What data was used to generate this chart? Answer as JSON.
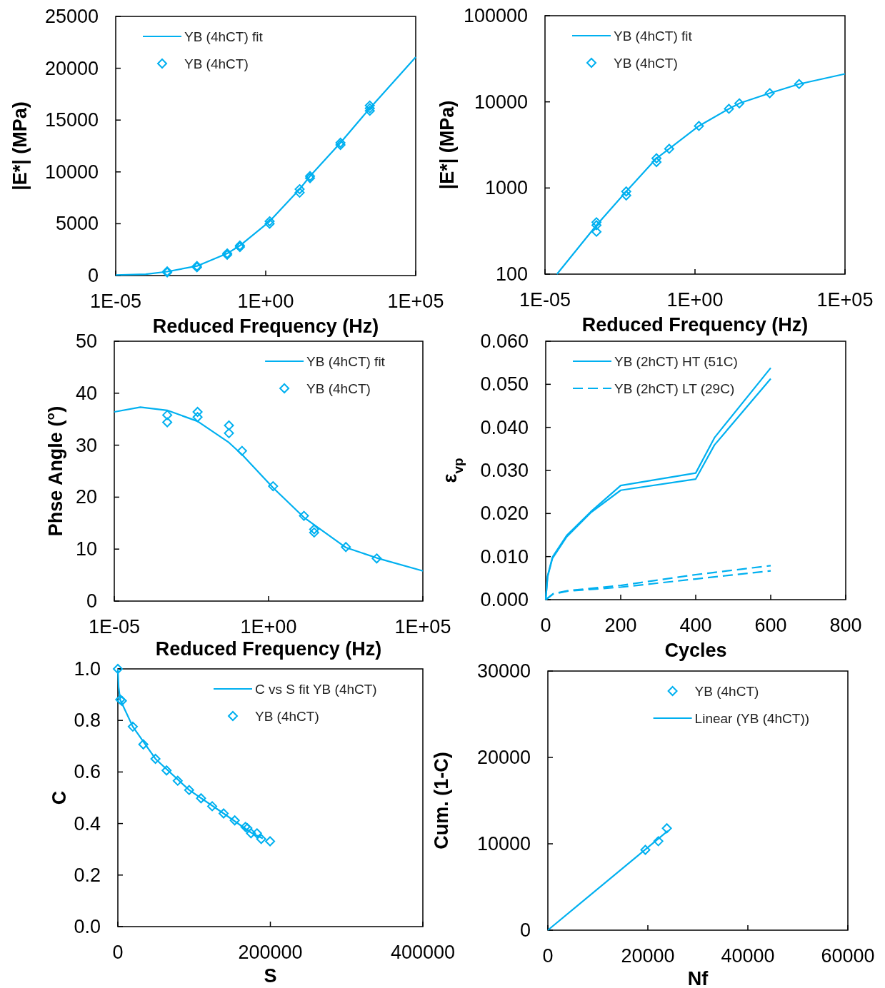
{
  "chart_data": [
    {
      "type": "scatter",
      "xlabel": "Reduced Frequency (Hz)",
      "ylabel": "|E*| (MPa)",
      "log": "x",
      "xlim": [
        1e-05,
        100000
      ],
      "xticks": [
        {
          "value": 1e-05,
          "label": "1E-05"
        },
        {
          "value": 1,
          "label": "1E+00"
        },
        {
          "value": 100000,
          "label": "1E+05"
        }
      ],
      "ylim": [
        0,
        25000
      ],
      "yticks": [
        0,
        5000,
        10000,
        15000,
        20000,
        25000
      ],
      "legend": "top left",
      "grid": false,
      "series": [
        {
          "name": "YB (4hCT) fit",
          "type": "line",
          "color": "#00b0f0",
          "x": [
            1e-05,
            0.0001,
            0.00052,
            0.0051,
            0.052,
            0.138,
            1.35,
            13.5,
            30,
            310,
            2950,
            100000
          ],
          "values": [
            50,
            130,
            380,
            920,
            2130,
            2890,
            5230,
            8330,
            9590,
            12810,
            16140,
            21070
          ]
        },
        {
          "name": "YB (4hCT)",
          "marker": "diamond",
          "color": "#00b0f0",
          "x": [
            0.00052,
            0.00052,
            0.0051,
            0.0051,
            0.052,
            0.052,
            0.138,
            0.138,
            1.35,
            1.35,
            13.5,
            13.5,
            30,
            30,
            310,
            310,
            2950,
            2950,
            2950
          ],
          "values": [
            400,
            300,
            920,
            800,
            2130,
            2000,
            2890,
            2750,
            5230,
            5000,
            8330,
            8000,
            9590,
            9400,
            12810,
            12600,
            16140,
            15900,
            16400
          ]
        }
      ]
    },
    {
      "type": "scatter",
      "xlabel": "Reduced Frequency (Hz)",
      "ylabel": "|E*| (MPa)",
      "log": "xy",
      "xlim": [
        1e-05,
        100000
      ],
      "xticks": [
        {
          "value": 1e-05,
          "label": "1E-05"
        },
        {
          "value": 1,
          "label": "1E+00"
        },
        {
          "value": 100000,
          "label": "1E+05"
        }
      ],
      "ylim": [
        100,
        100000
      ],
      "yticks": [
        100,
        1000,
        10000,
        100000
      ],
      "legend": "top left",
      "grid": false,
      "series": [
        {
          "name": "YB (4hCT) fit",
          "type": "line",
          "color": "#00b0f0",
          "x": [
            2.5e-05,
            0.00052,
            0.0051,
            0.052,
            0.138,
            1.35,
            13.5,
            30,
            310,
            2950,
            100000
          ],
          "values": [
            100,
            370,
            910,
            2210,
            2850,
            5250,
            8300,
            9600,
            12600,
            16100,
            21100
          ]
        },
        {
          "name": "YB (4hCT)",
          "marker": "diamond",
          "color": "#00b0f0",
          "x": [
            0.00052,
            0.00052,
            0.00052,
            0.0051,
            0.0051,
            0.052,
            0.052,
            0.138,
            1.35,
            13.5,
            30,
            310,
            2950
          ],
          "values": [
            370,
            310,
            400,
            910,
            820,
            2210,
            2000,
            2850,
            5250,
            8300,
            9600,
            12600,
            16100
          ]
        }
      ]
    },
    {
      "type": "scatter",
      "xlabel": "Reduced Frequency (Hz)",
      "ylabel": "Phse Angle (°)",
      "log": "x",
      "xlim": [
        1e-05,
        100000
      ],
      "xticks": [
        {
          "value": 1e-05,
          "label": "1E-05"
        },
        {
          "value": 1,
          "label": "1E+00"
        },
        {
          "value": 100000,
          "label": "1E+05"
        }
      ],
      "ylim": [
        0,
        50
      ],
      "yticks": [
        0,
        10,
        20,
        30,
        40,
        50
      ],
      "legend": "top right",
      "grid": false,
      "series": [
        {
          "name": "YB (4hCT) fit",
          "type": "line",
          "color": "#00b0f0",
          "x": [
            1e-05,
            7e-05,
            0.00052,
            0.005,
            0.052,
            0.138,
            1.4,
            14,
            320,
            3200,
            100000
          ],
          "values": [
            36.4,
            37.3,
            36.7,
            34.6,
            30.5,
            28.2,
            21.8,
            16.1,
            10.3,
            8.3,
            5.8
          ]
        },
        {
          "name": "YB (4hCT)",
          "marker": "diamond",
          "color": "#00b0f0",
          "x": [
            0.00052,
            0.00052,
            0.005,
            0.005,
            0.052,
            0.052,
            0.138,
            1.4,
            14,
            30,
            30,
            320,
            3200
          ],
          "values": [
            35.8,
            34.4,
            36.4,
            35.4,
            33.8,
            32.3,
            28.9,
            22.1,
            16.4,
            13.8,
            13.2,
            10.4,
            8.2
          ]
        }
      ]
    },
    {
      "type": "line",
      "xlabel": "Cycles",
      "ylabel": "ε$_{vp}$",
      "xlim": [
        0,
        800
      ],
      "xticks": [
        0,
        200,
        400,
        600,
        800
      ],
      "ylim": [
        0,
        0.06
      ],
      "yticks": [
        {
          "value": 0,
          "label": "0.000"
        },
        {
          "value": 0.01,
          "label": "0.010"
        },
        {
          "value": 0.02,
          "label": "0.020"
        },
        {
          "value": 0.03,
          "label": "0.030"
        },
        {
          "value": 0.04,
          "label": "0.040"
        },
        {
          "value": 0.05,
          "label": "0.050"
        },
        {
          "value": 0.06,
          "label": "0.060"
        }
      ],
      "legend": "top left",
      "grid": false,
      "series": [
        {
          "name": "YB (2hCT) HT (51C)",
          "color": "#00b0f0",
          "line_style": "solid",
          "x": [
            0,
            5,
            18,
            56,
            120,
            200,
            400,
            450,
            600
          ],
          "values": [
            0,
            0.0055,
            0.0099,
            0.0149,
            0.0204,
            0.0265,
            0.0294,
            0.0376,
            0.0538
          ]
        },
        {
          "color": "#00b0f0",
          "line_style": "solid",
          "x": [
            0,
            5,
            18,
            56,
            120,
            200,
            400,
            450,
            600
          ],
          "values": [
            0,
            0.0053,
            0.0096,
            0.0146,
            0.0202,
            0.0254,
            0.028,
            0.0359,
            0.0513
          ]
        },
        {
          "name": "YB (2hCT) LT (29C)",
          "color": "#00b0f0",
          "line_style": "dashed",
          "x": [
            0,
            20,
            60,
            200,
            400,
            600
          ],
          "values": [
            0,
            0.0014,
            0.0021,
            0.0033,
            0.0058,
            0.0079
          ]
        },
        {
          "color": "#00b0f0",
          "line_style": "dashed",
          "x": [
            0,
            20,
            60,
            200,
            400,
            600
          ],
          "values": [
            0,
            0.0013,
            0.002,
            0.0029,
            0.0048,
            0.0067
          ]
        }
      ]
    },
    {
      "type": "scatter",
      "xlabel": "S",
      "ylabel": "C",
      "xlim": [
        0,
        400000
      ],
      "xticks": [
        0,
        200000,
        400000
      ],
      "ylim": [
        0,
        1
      ],
      "yticks": [
        {
          "value": 0,
          "label": "0.0"
        },
        {
          "value": 0.2,
          "label": "0.2"
        },
        {
          "value": 0.4,
          "label": "0.4"
        },
        {
          "value": 0.6,
          "label": "0.6"
        },
        {
          "value": 0.8,
          "label": "0.8"
        },
        {
          "value": 1,
          "label": "1.0"
        }
      ],
      "legend": "top right",
      "grid": false,
      "series": [
        {
          "name": "C vs S fit YB (4hCT)",
          "type": "line",
          "color": "#00b0f0",
          "x": [
            0,
            1000,
            3100,
            19600,
            49300,
            93500,
            138700,
            174600,
            190000
          ],
          "values": [
            1,
            0.93,
            0.88,
            0.776,
            0.651,
            0.53,
            0.439,
            0.365,
            0.342
          ]
        },
        {
          "name": "YB (4hCT)",
          "marker": "diamond",
          "color": "#00b0f0",
          "x": [
            0,
            3100,
            5300,
            19600,
            33400,
            49300,
            63900,
            78500,
            93500,
            109100,
            123700,
            138700,
            153300,
            167300,
            169900,
            174600,
            182400,
            188000,
            199600
          ],
          "values": [
            1,
            0.881,
            0.876,
            0.776,
            0.707,
            0.651,
            0.606,
            0.566,
            0.53,
            0.498,
            0.467,
            0.439,
            0.412,
            0.387,
            0.382,
            0.362,
            0.362,
            0.34,
            0.331
          ]
        }
      ]
    },
    {
      "type": "scatter",
      "xlabel": "Nf",
      "ylabel": "Cum. (1-C)",
      "xlim": [
        0,
        60000
      ],
      "xticks": [
        0,
        20000,
        40000,
        60000
      ],
      "ylim": [
        0,
        30000
      ],
      "yticks": [
        0,
        10000,
        20000,
        30000
      ],
      "legend": "top right",
      "grid": false,
      "series": [
        {
          "name": "YB (4hCT)",
          "marker": "diamond",
          "color": "#00b0f0",
          "x": [
            19500,
            22100,
            23800
          ],
          "values": [
            9300,
            10300,
            11800
          ]
        },
        {
          "name": "Linear (YB (4hCT))",
          "type": "line",
          "color": "#00b0f0",
          "x": [
            0,
            24000
          ],
          "values": [
            0,
            11500
          ]
        }
      ]
    }
  ]
}
